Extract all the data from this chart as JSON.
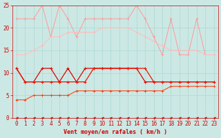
{
  "xlabel": "Vent moyen/en rafales ( km/h )",
  "background_color": "#cce8e4",
  "x": [
    0,
    1,
    2,
    3,
    4,
    5,
    6,
    7,
    8,
    9,
    10,
    11,
    12,
    13,
    14,
    15,
    16,
    17,
    18,
    19,
    20,
    21,
    22,
    23
  ],
  "line1_y": [
    22,
    22,
    22,
    25,
    18,
    25,
    22,
    18,
    22,
    22,
    22,
    22,
    22,
    22,
    25,
    22,
    18,
    14,
    22,
    14,
    14,
    22,
    14,
    14
  ],
  "line2_y": [
    14,
    14,
    15,
    16,
    18,
    18,
    19,
    19,
    19,
    19,
    20,
    20,
    20,
    20,
    19,
    18,
    17,
    16,
    15,
    15,
    15,
    15,
    14,
    14
  ],
  "line3_y": [
    11,
    8,
    8,
    11,
    11,
    8,
    11,
    8,
    11,
    11,
    11,
    11,
    11,
    11,
    11,
    8,
    8,
    8,
    8,
    8,
    8,
    8,
    8,
    8
  ],
  "line4_y": [
    11,
    8,
    8,
    8,
    8,
    8,
    8,
    8,
    8,
    11,
    11,
    11,
    11,
    11,
    11,
    11,
    8,
    8,
    8,
    8,
    8,
    8,
    8,
    8
  ],
  "line5_y": [
    4,
    4,
    5,
    5,
    5,
    5,
    5,
    6,
    6,
    6,
    6,
    6,
    6,
    6,
    6,
    6,
    6,
    6,
    7,
    7,
    7,
    7,
    7,
    7
  ],
  "line6_y": [
    0,
    0,
    0,
    0,
    0,
    0,
    0,
    0,
    0,
    0,
    0,
    0,
    0,
    0,
    0,
    0,
    0,
    0,
    0,
    0,
    0,
    0,
    0,
    0
  ],
  "line1_color": "#ff9999",
  "line2_color": "#ffbbbb",
  "line3_color": "#dd0000",
  "line4_color": "#ee1100",
  "line5_color": "#ff3300",
  "line6_color": "#cc0000",
  "grid_color": "#aad8d4",
  "tick_color": "#cc0000",
  "ylim": [
    0,
    25
  ],
  "xlim": [
    -0.5,
    23.5
  ],
  "yticks": [
    0,
    5,
    10,
    15,
    20,
    25
  ]
}
